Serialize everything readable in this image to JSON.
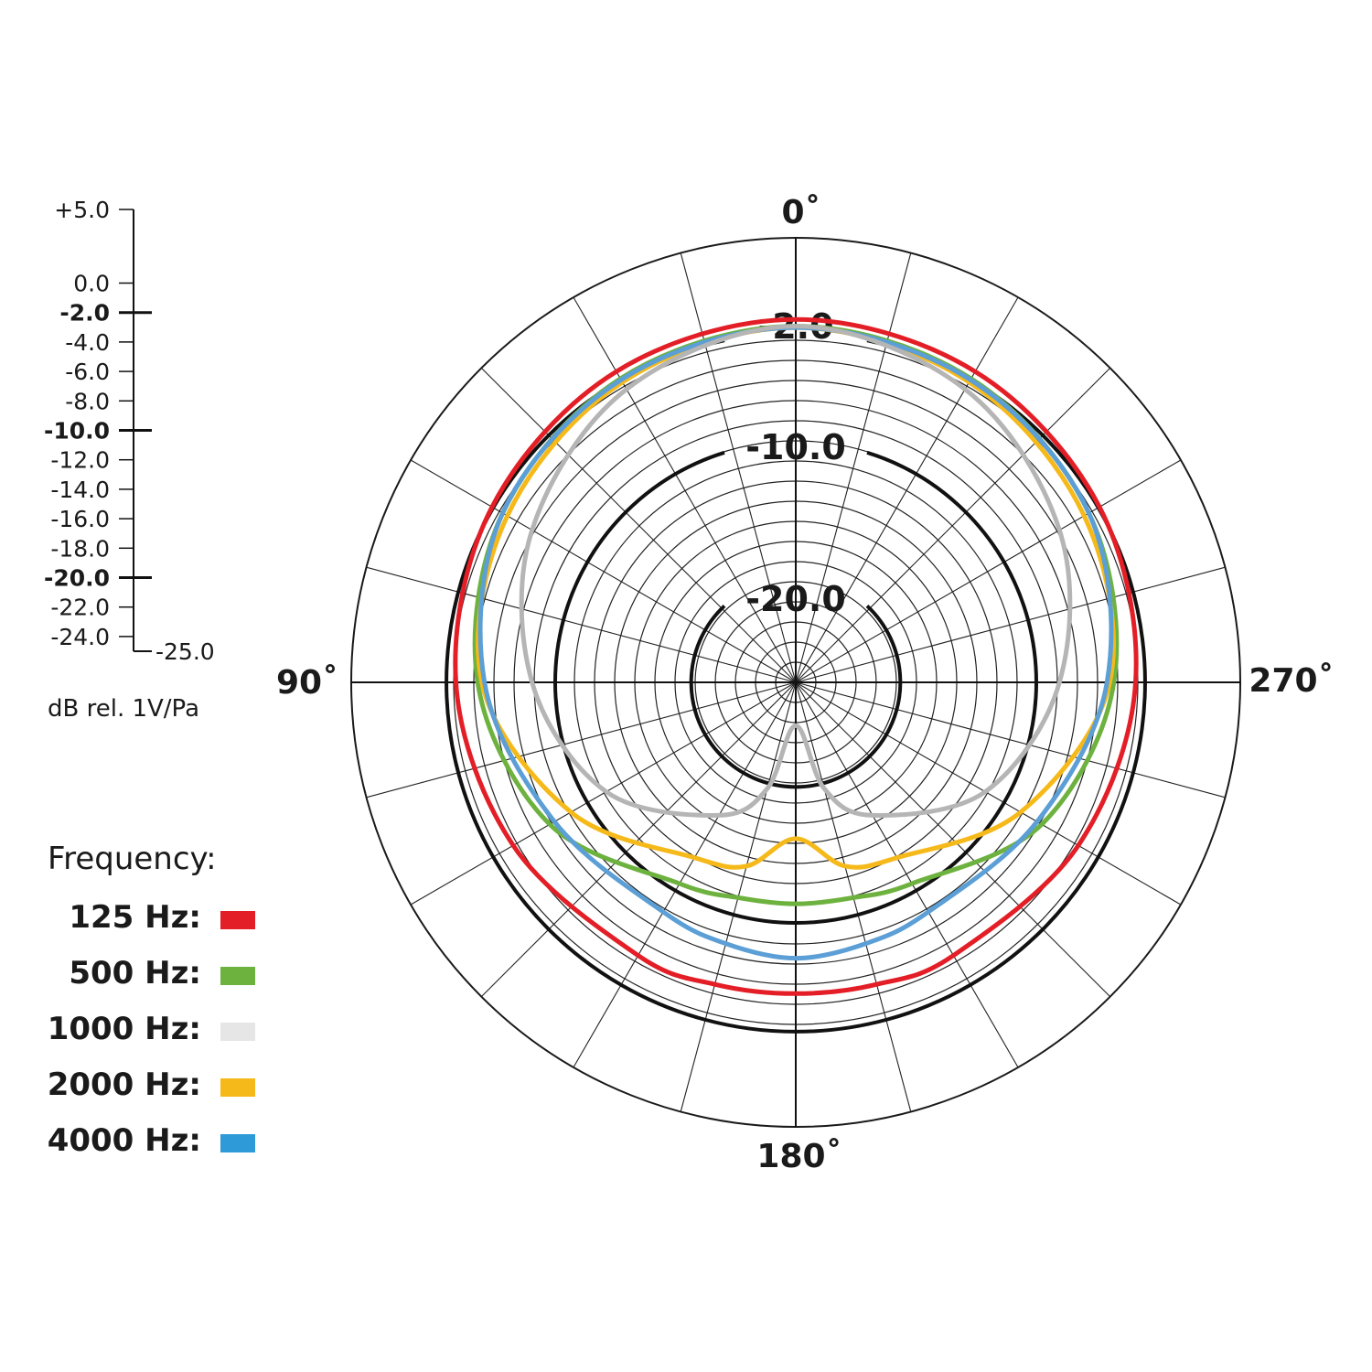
{
  "chart_data": {
    "type": "polar-line",
    "unit_label": "dB rel. 1V/Pa",
    "scale": {
      "min": -25.0,
      "max": 5.0,
      "ticks": [
        "+5.0",
        "0.0",
        "-2.0",
        "-4.0",
        "-6.0",
        "-8.0",
        "-10.0",
        "-12.0",
        "-14.0",
        "-16.0",
        "-18.0",
        "-20.0",
        "-22.0",
        "-24.0"
      ],
      "tick_values": [
        5,
        0,
        -2,
        -4,
        -6,
        -8,
        -10,
        -12,
        -14,
        -16,
        -18,
        -20,
        -22,
        -24
      ],
      "bold_ticks": [
        "-2.0",
        "-10.0",
        "-20.0"
      ],
      "end_label": "-25.0"
    },
    "ring_labels": [
      "-2.0",
      "-10.0",
      "-20.0"
    ],
    "ring_values": [
      -2,
      -10,
      -20
    ],
    "angle_labels": {
      "top": "0˚",
      "left": "90˚",
      "right": "270˚",
      "bottom": "180˚"
    },
    "angles": [
      0,
      30,
      60,
      90,
      120,
      150,
      165,
      180,
      195,
      210,
      240,
      270,
      300,
      330
    ],
    "legend_title": "Frequency:",
    "series": [
      {
        "name": "125 Hz:",
        "color": "#e31e26",
        "values": [
          -1.0,
          -1.3,
          -1.9,
          -2.7,
          -3.7,
          -4.5,
          -4.7,
          -4.8,
          -4.7,
          -4.5,
          -3.7,
          -2.7,
          -1.9,
          -1.3
        ]
      },
      {
        "name": "500 Hz:",
        "color": "#6db23f",
        "values": [
          -1.5,
          -1.9,
          -2.8,
          -4.3,
          -6.8,
          -10.6,
          -11.3,
          -11.4,
          -11.3,
          -10.6,
          -6.8,
          -4.3,
          -2.8,
          -1.9
        ]
      },
      {
        "name": "1000 Hz:",
        "color": "#b5b5b5",
        "legend_color": "#e6e6e6",
        "values": [
          -1.5,
          -2.8,
          -5.3,
          -8.3,
          -11.6,
          -16.4,
          -19.6,
          -24.5,
          -19.6,
          -16.4,
          -11.6,
          -8.3,
          -5.3,
          -2.8
        ]
      },
      {
        "name": "2000 Hz:",
        "color": "#f6b91a",
        "values": [
          -1.6,
          -2.2,
          -3.2,
          -4.6,
          -8.6,
          -12.8,
          -13.7,
          -16.2,
          -13.7,
          -12.8,
          -8.6,
          -4.6,
          -3.2,
          -2.2
        ]
      },
      {
        "name": "4000 Hz:",
        "color": "#5b9fd6",
        "legend_color": "#2f9ad8",
        "values": [
          -1.6,
          -2.0,
          -2.8,
          -4.8,
          -7.2,
          -8.2,
          -7.8,
          -7.4,
          -7.8,
          -8.2,
          -7.2,
          -4.8,
          -2.8,
          -2.0
        ]
      }
    ]
  }
}
